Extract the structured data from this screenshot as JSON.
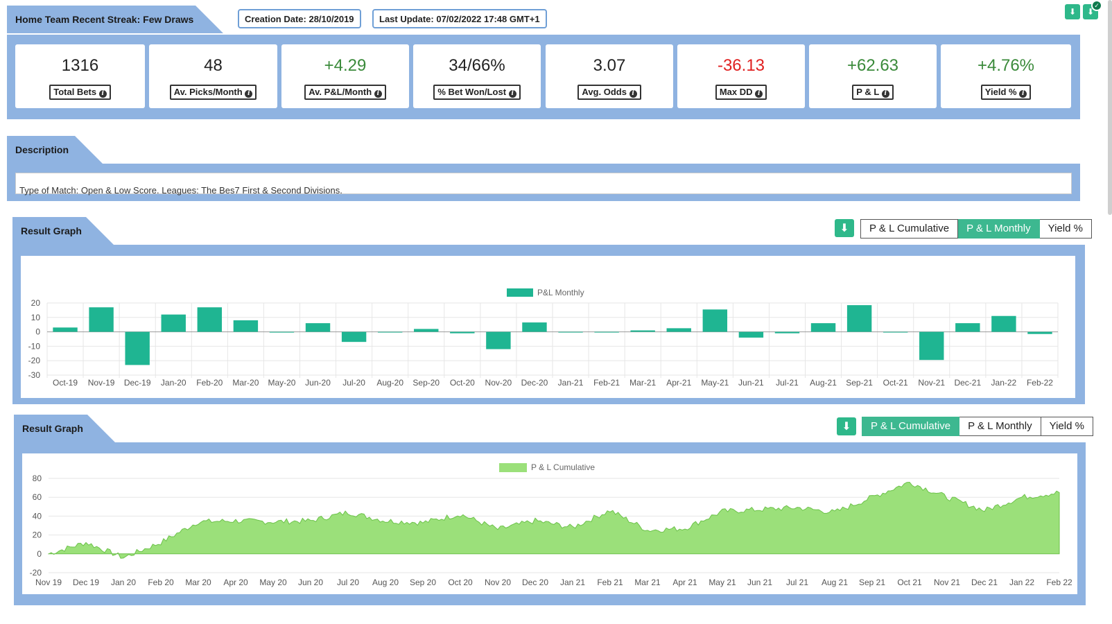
{
  "header": {
    "title": "Home Team Recent Streak: Few Draws",
    "creation_date": "Creation Date: 28/10/2019",
    "last_update": "Last Update: 07/02/2022 17:48 GMT+1"
  },
  "stats": [
    {
      "value": "1316",
      "label": "Total Bets",
      "color": "#222222"
    },
    {
      "value": "48",
      "label": "Av. Picks/Month",
      "color": "#222222"
    },
    {
      "value": "+4.29",
      "label": "Av. P&L/Month",
      "color": "#3a8a3a"
    },
    {
      "value": "34/66%",
      "label": "% Bet Won/Lost",
      "color": "#222222"
    },
    {
      "value": "3.07",
      "label": "Avg. Odds",
      "color": "#222222"
    },
    {
      "value": "-36.13",
      "label": "Max DD",
      "color": "#e02020"
    },
    {
      "value": "+62.63",
      "label": "P & L",
      "color": "#3a8a3a"
    },
    {
      "value": "+4.76%",
      "label": "Yield %",
      "color": "#3a8a3a"
    }
  ],
  "description": {
    "title": "Description",
    "text": "Type of Match: Open & Low Score. Leagues: The Bes7 First & Second Divisions."
  },
  "graph1": {
    "title": "Result Graph",
    "buttons": [
      "P & L Cumulative",
      "P & L Monthly",
      "Yield %"
    ],
    "active": 1
  },
  "graph2": {
    "title": "Result Graph",
    "buttons": [
      "P & L Cumulative",
      "P & L Monthly",
      "Yield %"
    ],
    "active": 0
  },
  "icons": {
    "download": "download-icon",
    "check": "check-icon"
  },
  "colors": {
    "frame": "#8fb3e1",
    "bar": "#1fb592",
    "area": "#9be07a",
    "active_button": "#3db890"
  },
  "chart_data": [
    {
      "type": "bar",
      "legend": "P&L Monthly",
      "categories": [
        "Oct-19",
        "Nov-19",
        "Dec-19",
        "Jan-20",
        "Feb-20",
        "Mar-20",
        "May-20",
        "Jun-20",
        "Jul-20",
        "Aug-20",
        "Sep-20",
        "Oct-20",
        "Nov-20",
        "Dec-20",
        "Jan-21",
        "Feb-21",
        "Mar-21",
        "Apr-21",
        "May-21",
        "Jun-21",
        "Jul-21",
        "Aug-21",
        "Sep-21",
        "Oct-21",
        "Nov-21",
        "Dec-21",
        "Jan-22",
        "Feb-22"
      ],
      "values": [
        3,
        17,
        -23,
        12,
        17,
        8,
        -0.5,
        6,
        -7,
        0,
        2,
        -1,
        -12,
        6.5,
        -0.3,
        0,
        1,
        2.5,
        15.5,
        -4,
        -1,
        6,
        18.5,
        0,
        -19.5,
        6,
        11,
        -1.5
      ],
      "yticks": [
        20,
        10,
        0,
        -10,
        -20,
        -30
      ],
      "ylim": [
        -30,
        20
      ]
    },
    {
      "type": "area",
      "legend": "P & L Cumulative",
      "x": [
        "Nov 19",
        "Dec 19",
        "Jan 20",
        "Feb 20",
        "Mar 20",
        "Apr 20",
        "May 20",
        "Jun 20",
        "Jul 20",
        "Aug 20",
        "Sep 20",
        "Oct 20",
        "Nov 20",
        "Dec 20",
        "Jan 21",
        "Feb 21",
        "Mar 21",
        "Apr 21",
        "May 21",
        "Jun 21",
        "Jul 21",
        "Aug 21",
        "Sep 21",
        "Oct 21",
        "Nov 21",
        "Dec 21",
        "Jan 22",
        "Feb 22"
      ],
      "values": [
        0,
        12,
        -4,
        12,
        34,
        35,
        34,
        35,
        44,
        35,
        33,
        42,
        26,
        35,
        28,
        46,
        25,
        27,
        45,
        47,
        49,
        44,
        60,
        76,
        60,
        46,
        60,
        65
      ],
      "yticks": [
        80,
        60,
        40,
        20,
        0,
        -20
      ],
      "ylim": [
        -20,
        80
      ]
    }
  ]
}
